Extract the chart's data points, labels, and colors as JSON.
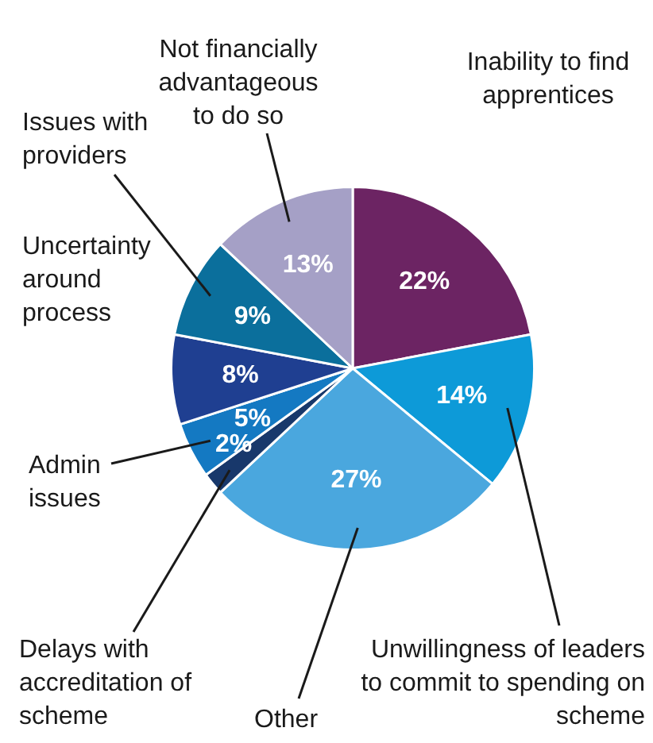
{
  "chart_data": {
    "type": "pie",
    "categories": [
      "Inability to find apprentices",
      "Unwillingness of leaders to commit to spending on scheme",
      "Other",
      "Delays with accreditation of scheme",
      "Admin issues",
      "Uncertainty around process",
      "Issues with providers",
      "Not financially advantageous to do so"
    ],
    "values": [
      22,
      14,
      27,
      2,
      5,
      8,
      9,
      13
    ],
    "value_labels": [
      "22%",
      "14%",
      "27%",
      "2%",
      "5%",
      "8%",
      "9%",
      "13%"
    ],
    "colors": [
      "#6c2463",
      "#0d9ad8",
      "#4aa7de",
      "#18386b",
      "#1479c2",
      "#1f3f91",
      "#0b6f9c",
      "#a5a0c6"
    ]
  }
}
